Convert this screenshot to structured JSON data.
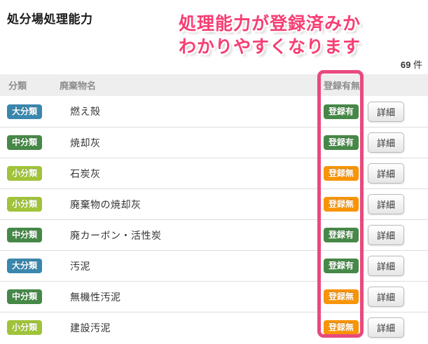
{
  "page_title": "処分場処理能力",
  "annotation": {
    "line1": "処理能力が登録済みか",
    "line2": "わかりやすくなります"
  },
  "count": {
    "value": "69",
    "unit": "件"
  },
  "table": {
    "headers": {
      "category": "分類",
      "name": "廃棄物名",
      "registration": "登録有無",
      "actions": ""
    },
    "detail_button": "詳細",
    "rows": [
      {
        "category": "大分類",
        "category_class": "dai",
        "name": "燃え殻",
        "registration": "登録有",
        "reg_class": "yes"
      },
      {
        "category": "中分類",
        "category_class": "chu",
        "name": "焼却灰",
        "registration": "登録有",
        "reg_class": "yes"
      },
      {
        "category": "小分類",
        "category_class": "sho",
        "name": "石炭灰",
        "registration": "登録無",
        "reg_class": "no"
      },
      {
        "category": "小分類",
        "category_class": "sho",
        "name": "廃棄物の焼却灰",
        "registration": "登録無",
        "reg_class": "no"
      },
      {
        "category": "中分類",
        "category_class": "chu",
        "name": "廃カーボン・活性炭",
        "registration": "登録有",
        "reg_class": "yes"
      },
      {
        "category": "大分類",
        "category_class": "dai",
        "name": "汚泥",
        "registration": "登録有",
        "reg_class": "yes"
      },
      {
        "category": "中分類",
        "category_class": "chu",
        "name": "無機性汚泥",
        "registration": "登録無",
        "reg_class": "no"
      },
      {
        "category": "小分類",
        "category_class": "sho",
        "name": "建設汚泥",
        "registration": "登録無",
        "reg_class": "no"
      }
    ]
  },
  "colors": {
    "dai_badge": "#3a87ad",
    "chu_badge": "#468847",
    "sho_badge": "#a0c339",
    "reg_yes_badge": "#468847",
    "reg_no_badge": "#f89406",
    "highlight_box": "#e84a7d",
    "annotation_text": "#f73e73"
  }
}
